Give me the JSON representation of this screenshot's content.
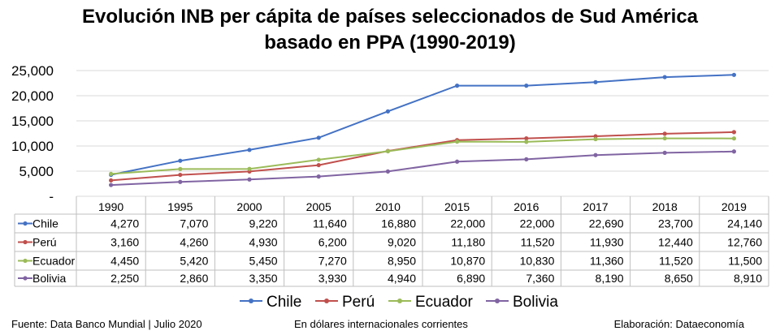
{
  "title_line1": "Evolución INB per cápita de países seleccionados de Sud América",
  "title_line2": "basado en PPA (1990-2019)",
  "footer": {
    "source": "Fuente: Data Banco Mundial | Julio 2020",
    "units": "En dólares internacionales corrientes",
    "credit": "Elaboración: Dataeconomía"
  },
  "chart_data": {
    "type": "line",
    "categories": [
      "1990",
      "1995",
      "2000",
      "2005",
      "2010",
      "2015",
      "2016",
      "2017",
      "2018",
      "2019"
    ],
    "y_ticks": [
      "-",
      "5,000",
      "10,000",
      "15,000",
      "20,000",
      "25,000"
    ],
    "ylim": [
      0,
      25000
    ],
    "grid": true,
    "legend_position": "bottom",
    "series": [
      {
        "name": "Chile",
        "color": "#4472c4",
        "values": [
          4270,
          7070,
          9220,
          11640,
          16880,
          22000,
          22000,
          22690,
          23700,
          24140
        ],
        "labels": [
          "4,270",
          "7,070",
          "9,220",
          "11,640",
          "16,880",
          "22,000",
          "22,000",
          "22,690",
          "23,700",
          "24,140"
        ]
      },
      {
        "name": "Perú",
        "color": "#c0504d",
        "values": [
          3160,
          4260,
          4930,
          6200,
          9020,
          11180,
          11520,
          11930,
          12440,
          12760
        ],
        "labels": [
          "3,160",
          "4,260",
          "4,930",
          "6,200",
          "9,020",
          "11,180",
          "11,520",
          "11,930",
          "12,440",
          "12,760"
        ]
      },
      {
        "name": "Ecuador",
        "color": "#9bbb59",
        "values": [
          4450,
          5420,
          5450,
          7270,
          8950,
          10870,
          10830,
          11360,
          11520,
          11500
        ],
        "labels": [
          "4,450",
          "5,420",
          "5,450",
          "7,270",
          "8,950",
          "10,870",
          "10,830",
          "11,360",
          "11,520",
          "11,500"
        ]
      },
      {
        "name": "Bolivia",
        "color": "#8064a2",
        "values": [
          2250,
          2860,
          3350,
          3930,
          4940,
          6890,
          7360,
          8190,
          8650,
          8910
        ],
        "labels": [
          "2,250",
          "2,860",
          "3,350",
          "3,930",
          "4,940",
          "6,890",
          "7,360",
          "8,190",
          "8,650",
          "8,910"
        ]
      }
    ]
  }
}
